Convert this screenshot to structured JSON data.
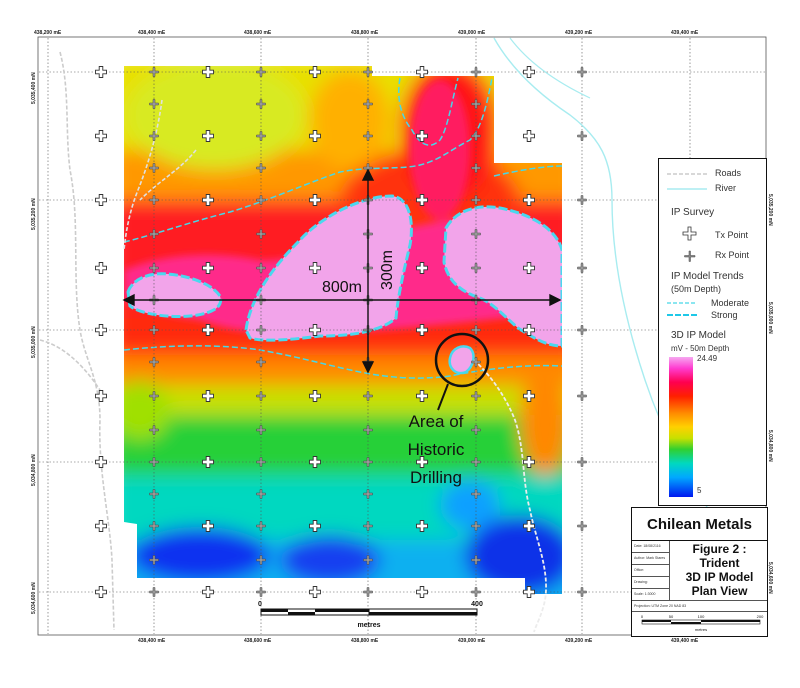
{
  "map": {
    "easting_labels": [
      "438,200 mE",
      "438,400 mE",
      "438,600 mE",
      "438,800 mE",
      "439,000 mE",
      "439,200 mE",
      "439,400 mE"
    ],
    "northing_labels": [
      "5,035,400 mN",
      "5,035,200 mN",
      "5,035,000 mN",
      "5,034,800 mN",
      "5,034,600 mN"
    ],
    "measure_horizontal": "800m",
    "measure_vertical": "300m",
    "annotation": [
      "Area of",
      "Historic",
      "Drilling"
    ],
    "scalebar": {
      "start": "0",
      "end": "400",
      "unit": "metres"
    }
  },
  "legend": {
    "roads": "Roads",
    "river": "River",
    "ip_survey_title": "IP Survey",
    "tx_point": "Tx Point",
    "rx_point": "Rx Point",
    "trends_title": "IP Model Trends",
    "trends_subtitle": "(50m Depth)",
    "moderate": "Moderate",
    "strong": "Strong",
    "model_title": "3D IP Model",
    "model_subtitle": "mV - 50m Depth",
    "max_value": "24.49",
    "min_value": "5",
    "colors": {
      "road": "#cccccc",
      "river": "#a8ecf0",
      "moderate": "#46d8e8",
      "strong": "#1ec8e8"
    }
  },
  "titleblock": {
    "company": "Chilean Metals",
    "figure": [
      "Figure 2 : Trident",
      "3D IP Model",
      "Plan View"
    ],
    "rows": [
      "Date: 18/08/2116",
      "Author: Mark Stares",
      "Office:",
      "Drawing:",
      "Scale: 1:3000"
    ],
    "projection": "Projection: UTM Zone 20 NAD 83",
    "scalebar": {
      "ticks": [
        "0",
        "50",
        "100",
        "200"
      ],
      "unit": "metres"
    }
  }
}
